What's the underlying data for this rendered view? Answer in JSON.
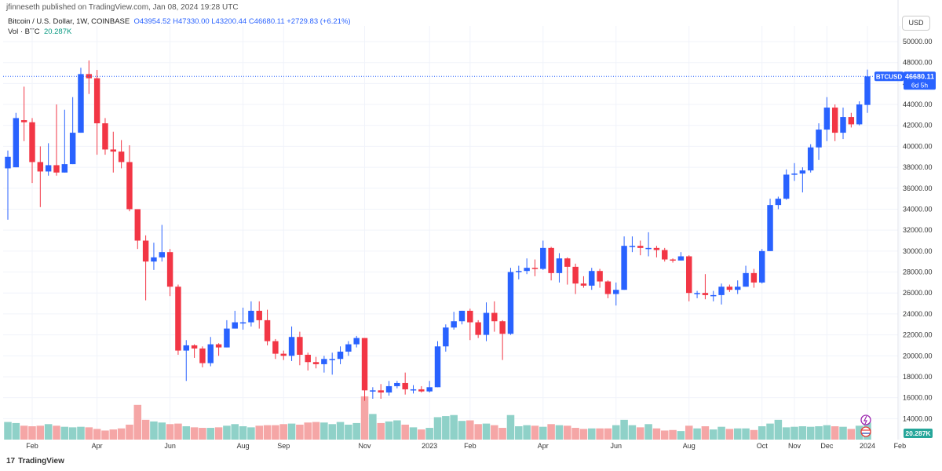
{
  "header": {
    "published_by": "jfinneseth published on TradingView.com, Jan 08, 2024 19:28 UTC",
    "symbol_line": "Bitcoin / U.S. Dollar, 1W, COINBASE",
    "ohlc_text": "O43954.52 H47330.00 L43200.44 C46680.11 +2729.83 (+6.21%)",
    "vol_label": "Vol · BTC",
    "vol_value": "20.287K",
    "currency": "USD"
  },
  "footer": {
    "brand": "TradingView",
    "brand_icon": "tradingview-logo-icon"
  },
  "price_tag": {
    "symbol": "BTCUSD",
    "price": "46680.11",
    "countdown": "6d 5h",
    "price_value": 46680.11
  },
  "volume_tag": {
    "text": "20.287K"
  },
  "colors": {
    "up": "#2962ff",
    "down": "#f23645",
    "vol_up": "#8fd1c8",
    "vol_down": "#f5a6a6",
    "vol_tag": "#26a69a",
    "grid": "#f0f3fa"
  },
  "chart_data": {
    "type": "candlestick",
    "title": "Bitcoin / U.S. Dollar, 1W, COINBASE",
    "y_ticks": [
      14000,
      16000,
      18000,
      20000,
      22000,
      24000,
      26000,
      28000,
      30000,
      32000,
      34000,
      36000,
      38000,
      40000,
      42000,
      44000,
      46000,
      48000,
      50000
    ],
    "y_tick_labels": [
      "14000.00",
      "16000.00",
      "18000.00",
      "20000.00",
      "22000.00",
      "24000.00",
      "26000.00",
      "28000.00",
      "30000.00",
      "32000.00",
      "34000.00",
      "36000.00",
      "38000.00",
      "40000.00",
      "42000.00",
      "44000.00",
      "46000.00",
      "48000.00",
      "50000.00"
    ],
    "ylim": [
      12000,
      51500
    ],
    "x_labels": [
      {
        "label": "Feb",
        "index": 3
      },
      {
        "label": "Apr",
        "index": 11
      },
      {
        "label": "Jun",
        "index": 20
      },
      {
        "label": "Aug",
        "index": 29
      },
      {
        "label": "Sep",
        "index": 34
      },
      {
        "label": "Nov",
        "index": 44
      },
      {
        "label": "2023",
        "index": 52
      },
      {
        "label": "Feb",
        "index": 57
      },
      {
        "label": "Apr",
        "index": 66
      },
      {
        "label": "Jun",
        "index": 75
      },
      {
        "label": "Aug",
        "index": 84
      },
      {
        "label": "Oct",
        "index": 93
      },
      {
        "label": "Nov",
        "index": 97
      },
      {
        "label": "Dec",
        "index": 101
      },
      {
        "label": "2024",
        "index": 106
      },
      {
        "label": "Feb",
        "index": 110
      }
    ],
    "candles": [
      [
        37900,
        39000,
        33000,
        39600,
        3.3
      ],
      [
        38000,
        42700,
        38000,
        43200,
        3.1
      ],
      [
        42500,
        42300,
        40500,
        45700,
        2.6
      ],
      [
        42300,
        38500,
        36500,
        42700,
        2.5
      ],
      [
        38500,
        37600,
        34200,
        40000,
        2.6
      ],
      [
        37600,
        38200,
        37200,
        40300,
        2.9
      ],
      [
        38200,
        37500,
        37200,
        44000,
        2.6
      ],
      [
        37500,
        38300,
        37500,
        43500,
        2.4
      ],
      [
        38300,
        41300,
        38300,
        44700,
        2.3
      ],
      [
        41300,
        46900,
        41300,
        47500,
        2.4
      ],
      [
        46900,
        46500,
        45000,
        48200,
        2.3
      ],
      [
        46500,
        42200,
        39200,
        47300,
        2.0
      ],
      [
        42200,
        39700,
        39200,
        42700,
        1.7
      ],
      [
        39700,
        39500,
        37500,
        41400,
        1.9
      ],
      [
        39500,
        38500,
        37900,
        40600,
        2.1
      ],
      [
        38500,
        34000,
        33800,
        40100,
        2.8
      ],
      [
        34000,
        31000,
        30200,
        34000,
        6.5
      ],
      [
        31000,
        29000,
        25300,
        31500,
        3.7
      ],
      [
        29000,
        29400,
        28200,
        30800,
        3.4
      ],
      [
        29400,
        29900,
        29000,
        32500,
        3.2
      ],
      [
        29900,
        26600,
        25700,
        30200,
        2.9
      ],
      [
        26600,
        20500,
        20100,
        26800,
        3.0
      ],
      [
        20500,
        21000,
        17600,
        21500,
        2.5
      ],
      [
        21000,
        20700,
        19800,
        21100,
        2.3
      ],
      [
        20700,
        19300,
        18900,
        20900,
        2.2
      ],
      [
        19300,
        21100,
        19000,
        21800,
        2.2
      ],
      [
        21100,
        20800,
        20000,
        21200,
        2.3
      ],
      [
        20800,
        22600,
        20800,
        23400,
        2.6
      ],
      [
        22600,
        23200,
        22600,
        24300,
        2.9
      ],
      [
        23200,
        23200,
        22500,
        24600,
        2.5
      ],
      [
        23200,
        24300,
        22800,
        25200,
        2.3
      ],
      [
        24300,
        23400,
        22600,
        25200,
        2.6
      ],
      [
        23400,
        21400,
        21000,
        24400,
        2.7
      ],
      [
        21400,
        20200,
        19700,
        21600,
        2.7
      ],
      [
        20200,
        20000,
        19600,
        20500,
        2.9
      ],
      [
        20000,
        21800,
        19500,
        22800,
        3.0
      ],
      [
        21800,
        20100,
        19100,
        22300,
        2.8
      ],
      [
        20100,
        19400,
        18600,
        20300,
        3.2
      ],
      [
        19400,
        19200,
        18800,
        19900,
        3.3
      ],
      [
        19200,
        19700,
        18400,
        20000,
        3.2
      ],
      [
        19700,
        19700,
        18200,
        20300,
        2.9
      ],
      [
        19700,
        20400,
        19200,
        20900,
        3.3
      ],
      [
        20400,
        21100,
        20000,
        21400,
        2.8
      ],
      [
        21100,
        21700,
        20800,
        21900,
        3.1
      ],
      [
        21700,
        16700,
        15700,
        21700,
        8.1
      ],
      [
        16700,
        16700,
        15900,
        17000,
        4.8
      ],
      [
        16700,
        16500,
        15900,
        17300,
        3.1
      ],
      [
        16500,
        17100,
        16200,
        17600,
        3.4
      ],
      [
        17100,
        17400,
        16900,
        17600,
        3.6
      ],
      [
        17400,
        16800,
        16300,
        18400,
        2.8
      ],
      [
        16800,
        16800,
        16400,
        17200,
        2.3
      ],
      [
        16800,
        16600,
        16500,
        17100,
        1.9
      ],
      [
        16600,
        17000,
        16500,
        17600,
        2.2
      ],
      [
        17000,
        20900,
        17000,
        21400,
        4.2
      ],
      [
        20900,
        22700,
        20400,
        23000,
        4.4
      ],
      [
        22700,
        23300,
        22500,
        24200,
        4.6
      ],
      [
        23300,
        24300,
        23000,
        24300,
        3.5
      ],
      [
        24300,
        23200,
        21500,
        24500,
        3.6
      ],
      [
        23200,
        22000,
        21700,
        23400,
        2.9
      ],
      [
        22000,
        24100,
        21400,
        25100,
        3.0
      ],
      [
        24100,
        23300,
        22300,
        25200,
        2.7
      ],
      [
        23300,
        22100,
        19600,
        23400,
        2.2
      ],
      [
        22100,
        28000,
        22000,
        28400,
        4.6
      ],
      [
        28000,
        28100,
        27300,
        28600,
        2.5
      ],
      [
        28100,
        28400,
        27800,
        29300,
        2.7
      ],
      [
        28400,
        28300,
        27600,
        29200,
        2.6
      ],
      [
        28300,
        30300,
        28200,
        31000,
        2.4
      ],
      [
        30300,
        27900,
        27200,
        30400,
        2.9
      ],
      [
        27900,
        29300,
        27000,
        29800,
        2.7
      ],
      [
        29300,
        28500,
        26800,
        29400,
        2.6
      ],
      [
        28500,
        26900,
        25900,
        28800,
        2.2
      ],
      [
        26900,
        26700,
        26500,
        27600,
        2.0
      ],
      [
        26700,
        28100,
        26300,
        28400,
        2.1
      ],
      [
        28100,
        27100,
        26500,
        28300,
        2.1
      ],
      [
        27100,
        25900,
        25500,
        27200,
        2.1
      ],
      [
        25900,
        26300,
        24800,
        27000,
        2.7
      ],
      [
        26300,
        30500,
        26300,
        31400,
        3.7
      ],
      [
        30500,
        30500,
        29900,
        31400,
        2.7
      ],
      [
        30500,
        30300,
        29600,
        31000,
        2.3
      ],
      [
        30300,
        30300,
        29500,
        31800,
        2.9
      ],
      [
        30300,
        30100,
        29400,
        30500,
        2.1
      ],
      [
        30100,
        29200,
        29000,
        30300,
        1.7
      ],
      [
        29200,
        29100,
        28900,
        29300,
        1.8
      ],
      [
        29100,
        29500,
        29100,
        29900,
        1.6
      ],
      [
        29500,
        26000,
        25200,
        29600,
        2.6
      ],
      [
        26000,
        26000,
        25500,
        26200,
        2.1
      ],
      [
        26000,
        25800,
        25400,
        27800,
        2.5
      ],
      [
        25800,
        25800,
        25200,
        26200,
        1.9
      ],
      [
        25800,
        26600,
        24900,
        26900,
        2.4
      ],
      [
        26600,
        26300,
        26100,
        26800,
        2.0
      ],
      [
        26300,
        26600,
        25900,
        27200,
        2.1
      ],
      [
        26600,
        27900,
        26600,
        28600,
        2.1
      ],
      [
        27900,
        27000,
        26500,
        28300,
        1.8
      ],
      [
        27000,
        30000,
        26900,
        30200,
        2.5
      ],
      [
        30000,
        34400,
        30000,
        35000,
        3.0
      ],
      [
        34400,
        35000,
        34000,
        35200,
        3.7
      ],
      [
        35000,
        37300,
        34900,
        37800,
        2.3
      ],
      [
        37300,
        37400,
        36700,
        38400,
        2.4
      ],
      [
        37400,
        37700,
        35600,
        38000,
        2.5
      ],
      [
        37700,
        39900,
        37500,
        40200,
        2.4
      ],
      [
        39900,
        41600,
        38700,
        42200,
        2.5
      ],
      [
        41600,
        43700,
        40500,
        44700,
        2.7
      ],
      [
        43700,
        41300,
        40500,
        44000,
        2.5
      ],
      [
        41300,
        42800,
        40700,
        43700,
        2.4
      ],
      [
        42800,
        42100,
        41800,
        43200,
        2.0
      ],
      [
        42100,
        44000,
        42000,
        44300,
        2.6
      ],
      [
        43954.52,
        46680.11,
        43200.44,
        47330.0,
        3.2
      ]
    ]
  }
}
